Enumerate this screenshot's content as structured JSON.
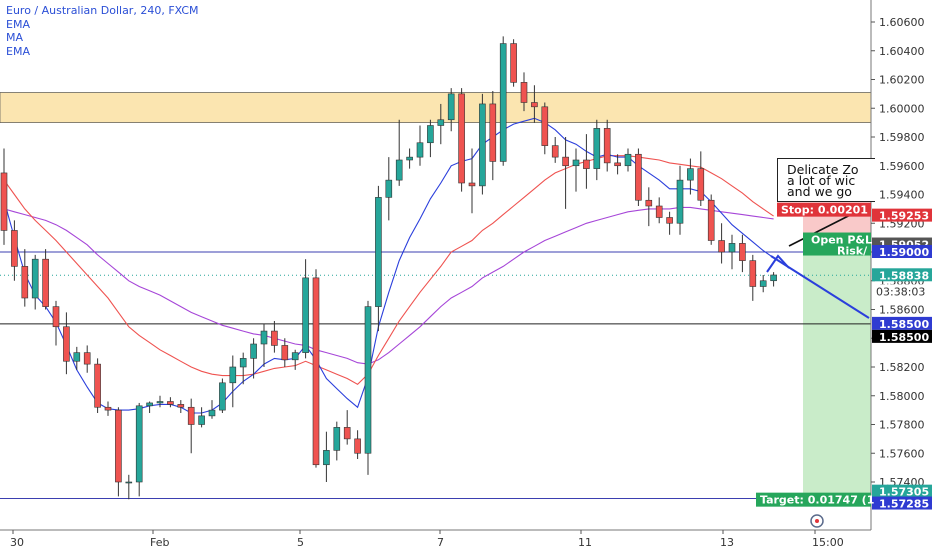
{
  "legend": {
    "title": "Euro / Australian Dollar, 240, FXCM",
    "indicators": [
      "EMA",
      "MA",
      "EMA"
    ]
  },
  "annotation": {
    "lines": [
      "Delicate Zo",
      "a lot of wic",
      "and we go"
    ]
  },
  "colors": {
    "bull": "#26a69a",
    "bear": "#ef5350",
    "ema_fast": "#2b3fdc",
    "ema_slow": "#ef5350",
    "ma": "#a646d8",
    "zone": "#fbe5b0",
    "target_zone": "#c9ecc9",
    "stop_zone": "#f9c9c9"
  },
  "labels": {
    "stop": "Stop: 0.00201",
    "open_pl": "Open P&L",
    "risk": "Risk/",
    "target": "Target: 0.01747 (1",
    "countdown": "03:38:03"
  },
  "chart_data": {
    "type": "candlestick",
    "title": "Euro / Australian Dollar, 240, FXCM",
    "ylim": [
      1.5715,
      1.6075
    ],
    "yticks": [
      1.574,
      1.576,
      1.578,
      1.58,
      1.582,
      1.584,
      1.586,
      1.588,
      1.59,
      1.592,
      1.594,
      1.596,
      1.598,
      1.6,
      1.602,
      1.604,
      1.606
    ],
    "xticks": [
      "30",
      "Feb",
      "5",
      "7",
      "11",
      "13",
      "15:00"
    ],
    "price_labels": [
      {
        "value": 1.59253,
        "text": "1.59253",
        "color": "#e0343a"
      },
      {
        "value": 1.59052,
        "text": "1.59052",
        "color": "#555555"
      },
      {
        "value": 1.59,
        "text": "1.59000",
        "color": "#2f3bd1"
      },
      {
        "value": 1.58838,
        "text": "1.58838",
        "color": "#26a69a"
      },
      {
        "value": 1.585,
        "text": "1.58500",
        "color": "#2f3bd1"
      },
      {
        "value": 1.585,
        "text": "1.58500",
        "color": "#000000"
      },
      {
        "value": 1.57305,
        "text": "1.57305",
        "color": "#26a69a"
      },
      {
        "value": 1.57285,
        "text": "1.57285",
        "color": "#2f3bd1"
      }
    ],
    "zone": [
      1.599,
      1.6011
    ],
    "hlines": [
      1.59,
      1.585,
      1.57285
    ],
    "current_price": 1.58838,
    "position": {
      "entry": 1.59052,
      "stop": 1.59253,
      "target": 1.57305
    },
    "candles": [
      [
        1.5955,
        1.5972,
        1.5905,
        1.5915
      ],
      [
        1.5915,
        1.5922,
        1.588,
        1.589
      ],
      [
        1.589,
        1.5902,
        1.5862,
        1.5868
      ],
      [
        1.5868,
        1.5898,
        1.586,
        1.5895
      ],
      [
        1.5895,
        1.5902,
        1.586,
        1.5862
      ],
      [
        1.5862,
        1.5866,
        1.5835,
        1.5848
      ],
      [
        1.5848,
        1.5858,
        1.5815,
        1.5824
      ],
      [
        1.5824,
        1.5834,
        1.5818,
        1.583
      ],
      [
        1.583,
        1.5835,
        1.5816,
        1.5822
      ],
      [
        1.5822,
        1.5826,
        1.5788,
        1.5792
      ],
      [
        1.5792,
        1.5796,
        1.5786,
        1.579
      ],
      [
        1.579,
        1.5792,
        1.573,
        1.574
      ],
      [
        1.574,
        1.5745,
        1.5728,
        1.574
      ],
      [
        1.574,
        1.5795,
        1.573,
        1.5793
      ],
      [
        1.5793,
        1.5796,
        1.5788,
        1.5795
      ],
      [
        1.5795,
        1.58,
        1.5792,
        1.5796
      ],
      [
        1.5796,
        1.5799,
        1.5792,
        1.5794
      ],
      [
        1.5794,
        1.5797,
        1.5788,
        1.5792
      ],
      [
        1.5792,
        1.5798,
        1.576,
        1.578
      ],
      [
        1.578,
        1.5792,
        1.5778,
        1.5786
      ],
      [
        1.5786,
        1.5797,
        1.5784,
        1.579
      ],
      [
        1.579,
        1.5812,
        1.5788,
        1.5809
      ],
      [
        1.5809,
        1.5828,
        1.5792,
        1.582
      ],
      [
        1.582,
        1.583,
        1.5808,
        1.5826
      ],
      [
        1.5826,
        1.584,
        1.5812,
        1.5836
      ],
      [
        1.5836,
        1.585,
        1.582,
        1.5845
      ],
      [
        1.5845,
        1.5852,
        1.583,
        1.5835
      ],
      [
        1.5835,
        1.584,
        1.582,
        1.5825
      ],
      [
        1.5825,
        1.5832,
        1.5818,
        1.583
      ],
      [
        1.583,
        1.5895,
        1.5826,
        1.5882
      ],
      [
        1.5882,
        1.5888,
        1.575,
        1.5752
      ],
      [
        1.5752,
        1.5775,
        1.574,
        1.5762
      ],
      [
        1.5762,
        1.5782,
        1.5755,
        1.5778
      ],
      [
        1.5778,
        1.579,
        1.5766,
        1.577
      ],
      [
        1.577,
        1.5776,
        1.5756,
        1.576
      ],
      [
        1.576,
        1.5866,
        1.5745,
        1.5862
      ],
      [
        1.5862,
        1.5946,
        1.5845,
        1.5938
      ],
      [
        1.5938,
        1.5966,
        1.5922,
        1.595
      ],
      [
        1.595,
        1.5992,
        1.5946,
        1.5964
      ],
      [
        1.5964,
        1.5972,
        1.5958,
        1.5966
      ],
      [
        1.5966,
        1.5988,
        1.596,
        1.5976
      ],
      [
        1.5976,
        1.5992,
        1.5966,
        1.5988
      ],
      [
        1.5988,
        1.6003,
        1.5975,
        1.5992
      ],
      [
        1.5992,
        1.6014,
        1.5984,
        1.601
      ],
      [
        1.601,
        1.6014,
        1.5942,
        1.5948
      ],
      [
        1.5948,
        1.5972,
        1.5927,
        1.5946
      ],
      [
        1.5946,
        1.601,
        1.594,
        1.6003
      ],
      [
        1.6003,
        1.6012,
        1.595,
        1.5963
      ],
      [
        1.5963,
        1.605,
        1.596,
        1.6045
      ],
      [
        1.6045,
        1.6048,
        1.6015,
        1.6018
      ],
      [
        1.6018,
        1.6025,
        1.5998,
        1.6004
      ],
      [
        1.6004,
        1.6016,
        1.599,
        1.6001
      ],
      [
        1.6001,
        1.6004,
        1.5968,
        1.5974
      ],
      [
        1.5974,
        1.598,
        1.5962,
        1.5966
      ],
      [
        1.5966,
        1.598,
        1.593,
        1.596
      ],
      [
        1.596,
        1.5972,
        1.5942,
        1.5964
      ],
      [
        1.5964,
        1.5982,
        1.5944,
        1.5958
      ],
      [
        1.5958,
        1.5992,
        1.595,
        1.5986
      ],
      [
        1.5986,
        1.5992,
        1.5956,
        1.5962
      ],
      [
        1.5962,
        1.5968,
        1.5954,
        1.596
      ],
      [
        1.596,
        1.5972,
        1.5956,
        1.5968
      ],
      [
        1.5968,
        1.5972,
        1.5932,
        1.5936
      ],
      [
        1.5936,
        1.5945,
        1.5918,
        1.5932
      ],
      [
        1.5932,
        1.5938,
        1.592,
        1.5924
      ],
      [
        1.5924,
        1.5928,
        1.5912,
        1.592
      ],
      [
        1.592,
        1.596,
        1.5912,
        1.595
      ],
      [
        1.595,
        1.5965,
        1.594,
        1.5958
      ],
      [
        1.5958,
        1.597,
        1.5932,
        1.5936
      ],
      [
        1.5936,
        1.594,
        1.5905,
        1.5908
      ],
      [
        1.5908,
        1.592,
        1.5892,
        1.59
      ],
      [
        1.59,
        1.5912,
        1.5888,
        1.5906
      ],
      [
        1.5906,
        1.5912,
        1.5886,
        1.5894
      ],
      [
        1.5894,
        1.5898,
        1.5866,
        1.5876
      ],
      [
        1.5876,
        1.5884,
        1.5872,
        1.588
      ],
      [
        1.588,
        1.5886,
        1.5876,
        1.5884
      ]
    ],
    "ema_fast": [
      1.5936,
      1.591,
      1.5885,
      1.587,
      1.5862,
      1.5851,
      1.5835,
      1.5818,
      1.5806,
      1.5795,
      1.5791,
      1.579,
      1.579,
      1.5791,
      1.5793,
      1.5794,
      1.5794,
      1.5792,
      1.5788,
      1.5788,
      1.579,
      1.5795,
      1.5803,
      1.581,
      1.5815,
      1.5822,
      1.5826,
      1.5825,
      1.5826,
      1.5835,
      1.5825,
      1.5812,
      1.5805,
      1.5798,
      1.5792,
      1.5813,
      1.5848,
      1.5872,
      1.5894,
      1.591,
      1.5923,
      1.5937,
      1.5948,
      1.596,
      1.5963,
      1.5965,
      1.5975,
      1.598,
      1.5985,
      1.5989,
      1.5991,
      1.5993,
      1.599,
      1.5985,
      1.5978,
      1.5975,
      1.597,
      1.5966,
      1.5968,
      1.5966,
      1.5966,
      1.596,
      1.5955,
      1.595,
      1.5944,
      1.5944,
      1.5944,
      1.5942,
      1.5935,
      1.5927,
      1.5919,
      1.5913,
      1.5907,
      1.5901,
      1.5896
    ],
    "ema_slow": [
      1.595,
      1.594,
      1.593,
      1.5922,
      1.5915,
      1.5908,
      1.59,
      1.5892,
      1.5884,
      1.5876,
      1.5868,
      1.5858,
      1.5848,
      1.5842,
      1.5837,
      1.5832,
      1.5828,
      1.5824,
      1.582,
      1.5817,
      1.5815,
      1.5814,
      1.5814,
      1.5814,
      1.5815,
      1.5817,
      1.5819,
      1.582,
      1.5821,
      1.5824,
      1.5821,
      1.5818,
      1.5815,
      1.5812,
      1.5808,
      1.5815,
      1.5828,
      1.584,
      1.5852,
      1.5862,
      1.5872,
      1.5881,
      1.589,
      1.59,
      1.5904,
      1.5908,
      1.5915,
      1.592,
      1.5926,
      1.5932,
      1.5938,
      1.5944,
      1.595,
      1.5955,
      1.5958,
      1.5961,
      1.5963,
      1.5965,
      1.5967,
      1.5967,
      1.5967,
      1.5966,
      1.5965,
      1.5964,
      1.5962,
      1.5961,
      1.596,
      1.5959,
      1.5955,
      1.5951,
      1.5946,
      1.5941,
      1.5935,
      1.593,
      1.5925
    ],
    "ma": [
      1.593,
      1.5928,
      1.5926,
      1.5924,
      1.5922,
      1.5919,
      1.5915,
      1.591,
      1.5905,
      1.5898,
      1.5892,
      1.5886,
      1.588,
      1.5876,
      1.5873,
      1.587,
      1.5866,
      1.5862,
      1.5858,
      1.5855,
      1.5852,
      1.5849,
      1.5847,
      1.5845,
      1.5843,
      1.5842,
      1.584,
      1.5838,
      1.5836,
      1.5835,
      1.5832,
      1.583,
      1.5828,
      1.5826,
      1.5823,
      1.5822,
      1.5825,
      1.583,
      1.5836,
      1.5842,
      1.5848,
      1.5855,
      1.5862,
      1.5868,
      1.5872,
      1.5876,
      1.5882,
      1.5886,
      1.589,
      1.5895,
      1.59,
      1.5904,
      1.5908,
      1.5911,
      1.5914,
      1.5917,
      1.592,
      1.5922,
      1.5924,
      1.5926,
      1.5928,
      1.5929,
      1.593,
      1.593,
      1.593,
      1.5931,
      1.5931,
      1.593,
      1.5929,
      1.5928,
      1.5927,
      1.5926,
      1.5925,
      1.5924,
      1.5923
    ]
  }
}
